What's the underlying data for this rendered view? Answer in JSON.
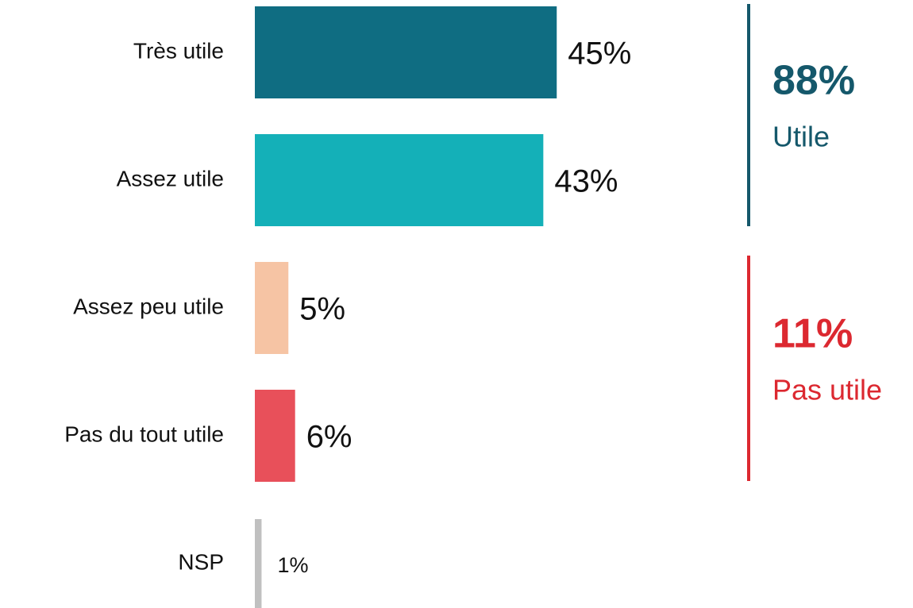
{
  "chart_data": {
    "type": "bar",
    "orientation": "horizontal",
    "categories": [
      "Très utile",
      "Assez utile",
      "Assez peu utile",
      "Pas du tout utile",
      "NSP"
    ],
    "values": [
      45,
      43,
      5,
      6,
      1
    ],
    "value_labels": [
      "45%",
      "43%",
      "5%",
      "6%",
      "1%"
    ],
    "colors": [
      "#0f6d82",
      "#14b0b8",
      "#f6c4a4",
      "#e8505a",
      "#c0c0c0"
    ],
    "annotations": [
      {
        "value": 88,
        "value_label": "88%",
        "text": "Utile",
        "color": "#15586b"
      },
      {
        "value": 11,
        "value_label": "11%",
        "text": "Pas utile",
        "color": "#dc2830"
      }
    ]
  }
}
